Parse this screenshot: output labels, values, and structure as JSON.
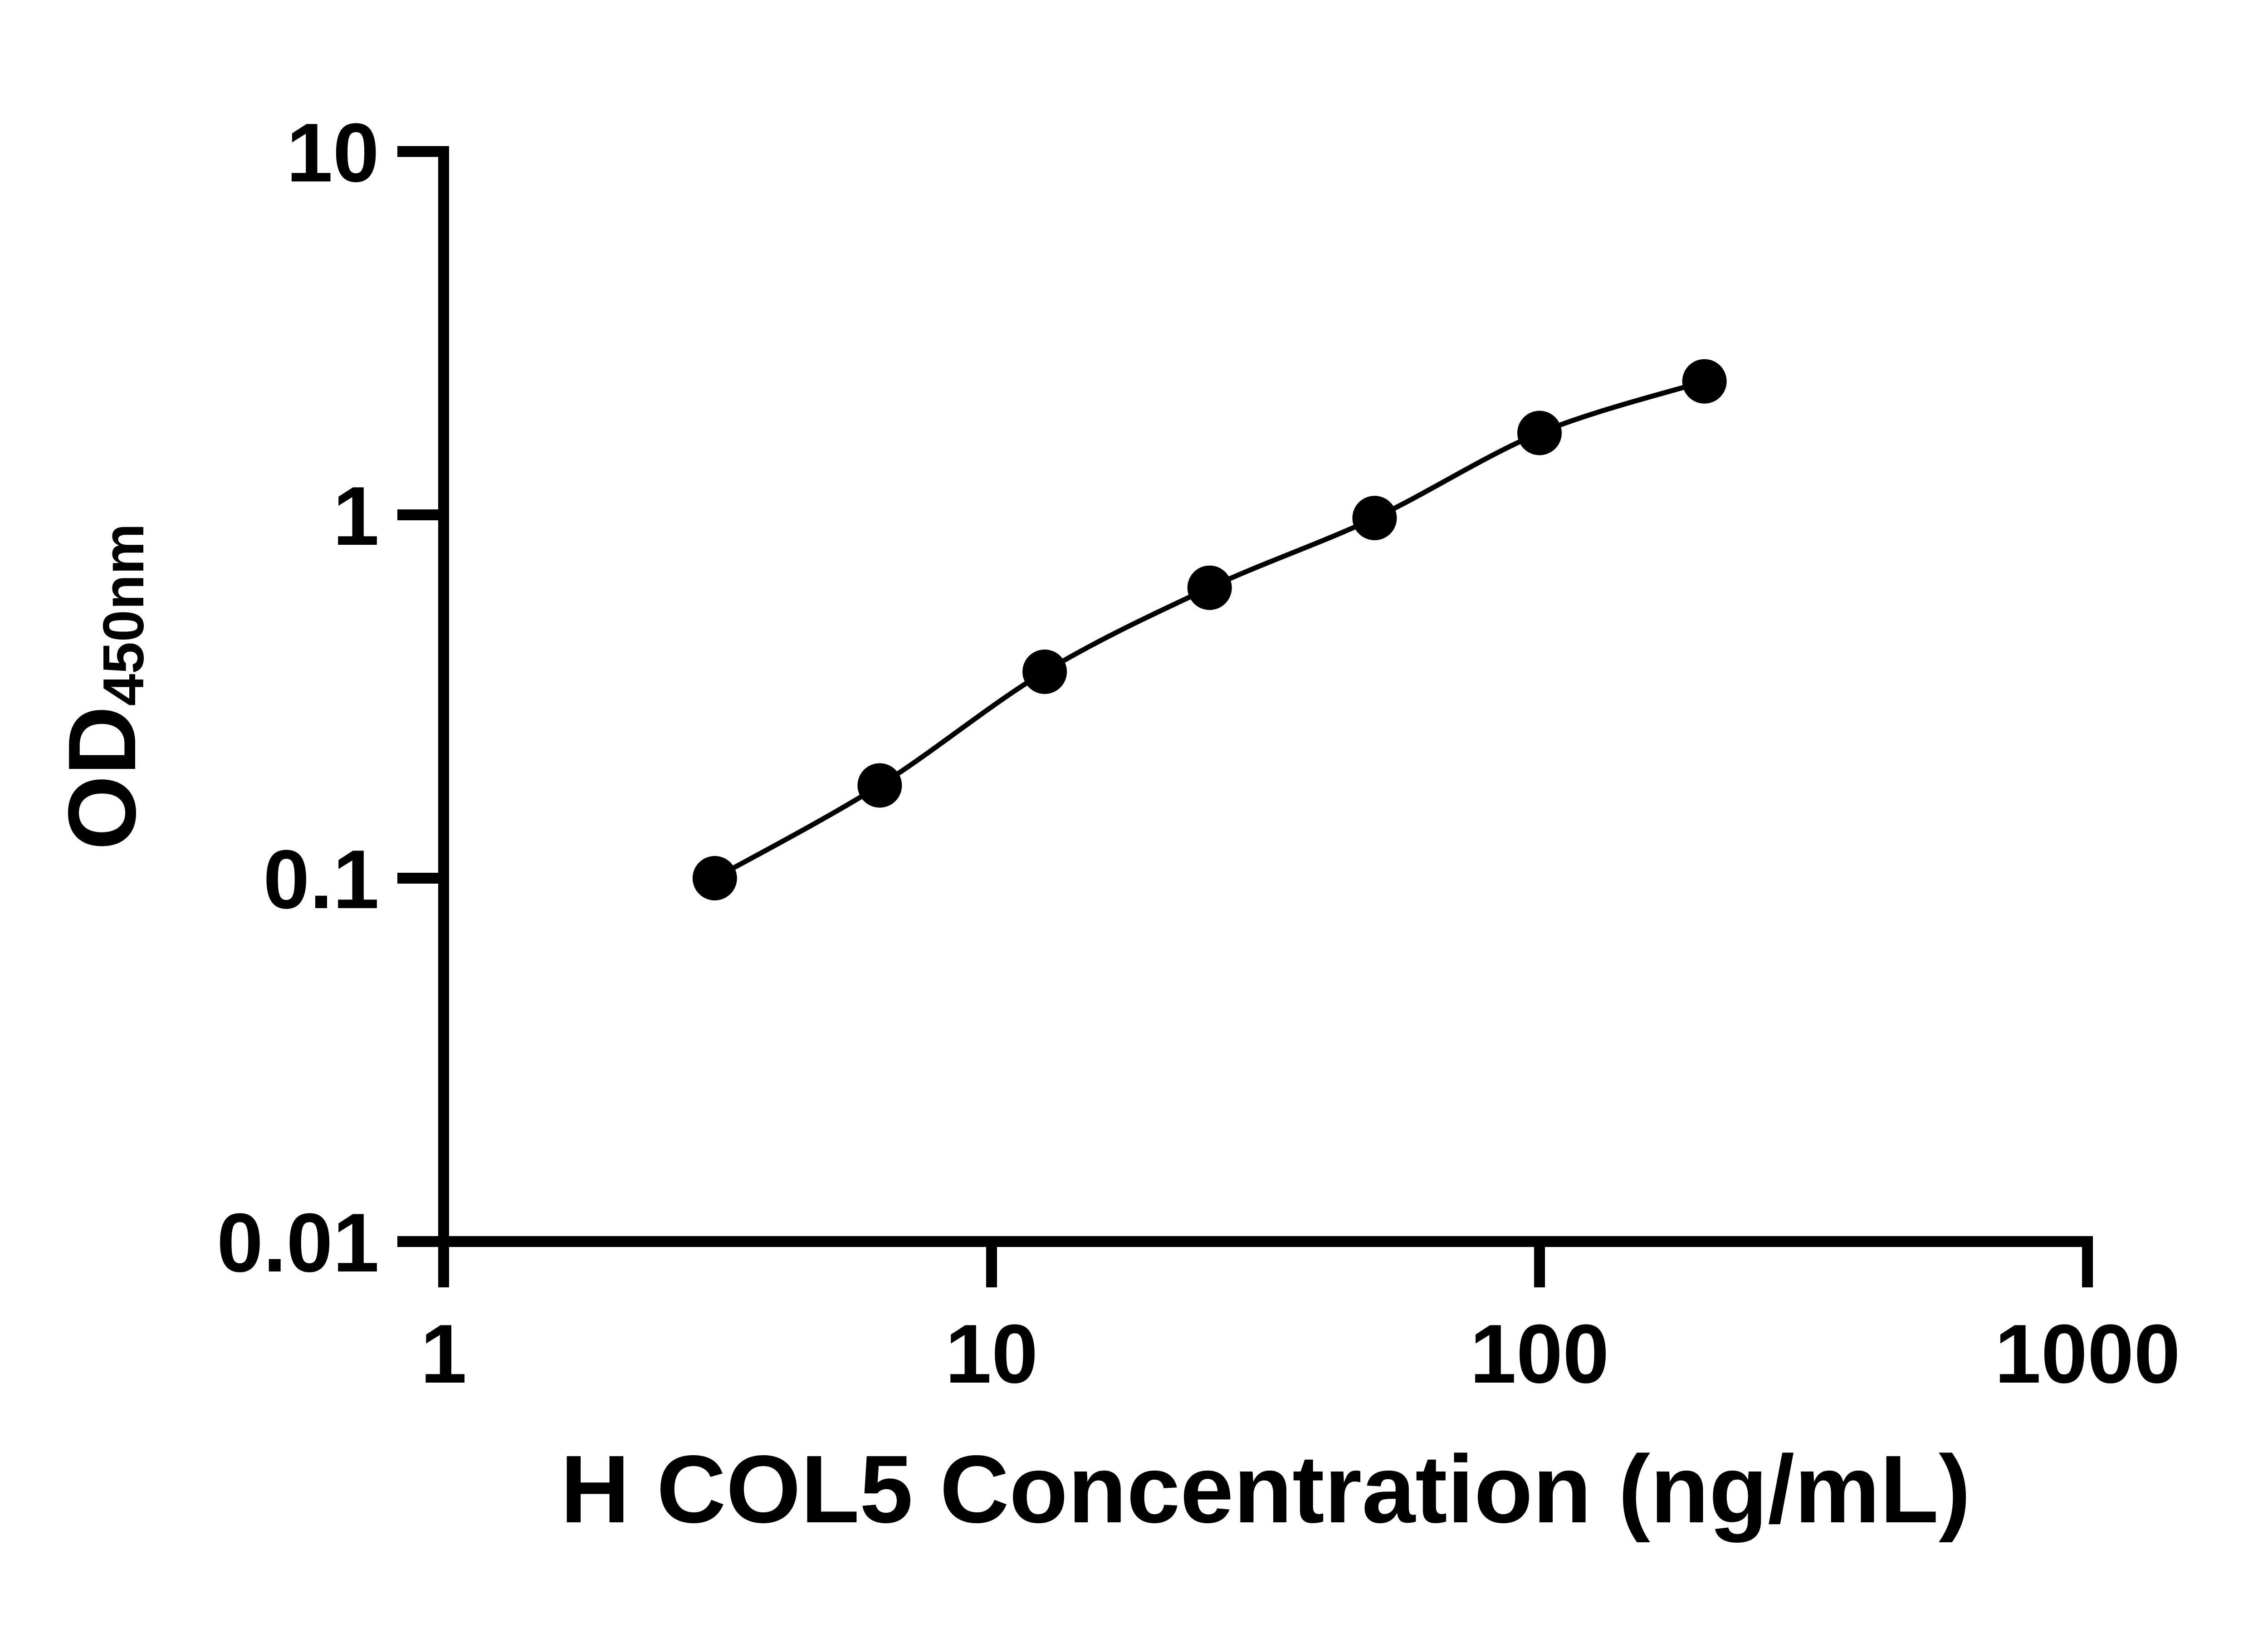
{
  "figure": {
    "background_color": "#ffffff",
    "foreground_color": "#000000"
  },
  "chart_data": {
    "type": "scatter",
    "title": "",
    "xlabel": "H COL5 Concentration (ng/mL)",
    "ylabel": "OD",
    "ylabel_subscript": "450nm",
    "x_axis": {
      "scale": "log10",
      "min": 1,
      "max": 1000,
      "tick_values": [
        1,
        10,
        100,
        1000
      ],
      "tick_labels": [
        "1",
        "10",
        "100",
        "1000"
      ]
    },
    "y_axis": {
      "scale": "log10",
      "min": 0.01,
      "max": 10,
      "tick_values": [
        0.01,
        0.1,
        1,
        10
      ],
      "tick_labels": [
        "0.01",
        "0.1",
        "1",
        "10"
      ]
    },
    "series": [
      {
        "x": [
          3.125,
          6.25,
          12.5,
          25,
          50,
          100,
          200
        ],
        "y": [
          0.1,
          0.18,
          0.37,
          0.63,
          0.98,
          1.68,
          2.33
        ],
        "marker": "filled-circle",
        "marker_color": "#000000",
        "line_style": "smooth",
        "line_color": "#000000"
      }
    ],
    "grid": false,
    "legend": "none"
  }
}
